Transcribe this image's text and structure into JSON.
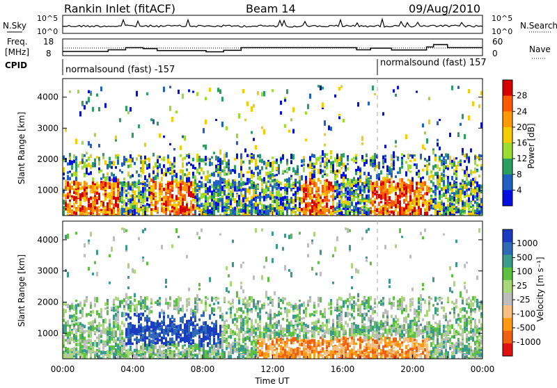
{
  "header": {
    "station": "Rankin Inlet (fitACF)",
    "beam": "Beam 14",
    "date": "09/Aug/2010"
  },
  "left_labels": {
    "nsky": "N.Sky",
    "freq": "Freq.",
    "mhz": "[MHz]",
    "cpid": "CPID"
  },
  "right_labels": {
    "nsearch": "N.Search",
    "nave": "Nave"
  },
  "cpid_segments": [
    {
      "label": "normalsound (fast) -157",
      "start_h": 0
    },
    {
      "label": "normalsound (fast) 157",
      "start_h": 18
    }
  ],
  "chart_data": [
    {
      "type": "line",
      "panel": "noise",
      "left_ticks": [
        "10^5",
        "10^0"
      ],
      "right_ticks": [
        "10^5",
        "10^0"
      ]
    },
    {
      "type": "line",
      "panel": "frequency",
      "left_ticks": [
        "18",
        "8"
      ],
      "right_ticks": [
        "60",
        "0"
      ],
      "freq_mhz_steps": [
        {
          "t": 0,
          "v": 10.5
        },
        {
          "t": 2.6,
          "v": 11.5
        },
        {
          "t": 3.6,
          "v": 12.8
        },
        {
          "t": 4.6,
          "v": 12.2
        },
        {
          "t": 5.4,
          "v": 11.0
        },
        {
          "t": 8.2,
          "v": 10.3
        },
        {
          "t": 9.2,
          "v": 11.2
        },
        {
          "t": 10.2,
          "v": 12.8
        },
        {
          "t": 16.8,
          "v": 11.5
        },
        {
          "t": 17.6,
          "v": 12.5
        },
        {
          "t": 18.8,
          "v": 11.4
        },
        {
          "t": 20.8,
          "v": 13.2
        },
        {
          "t": 21.2,
          "v": 14.6
        },
        {
          "t": 22.0,
          "v": 12.8
        },
        {
          "t": 24,
          "v": 12.8
        }
      ]
    },
    {
      "type": "heatmap",
      "panel": "power",
      "ylabel": "Slant Range [km]",
      "colorbar_label": "Power [dB]",
      "colorbar_ticks": [
        "28",
        "24",
        "20",
        "16",
        "12",
        "8",
        "4"
      ],
      "colors": [
        "#d40000",
        "#ff5a00",
        "#ff9a00",
        "#f4cc00",
        "#9adc30",
        "#2aa060",
        "#2060c0",
        "#0010e0"
      ],
      "y_ticks": [
        "4000",
        "3000",
        "2000",
        "1000"
      ]
    },
    {
      "type": "heatmap",
      "panel": "velocity",
      "ylabel": "Slant Range [km]",
      "xlabel": "Time UT",
      "colorbar_label": "Velocity [m s⁻¹]",
      "colorbar_ticks": [
        "1000",
        "500",
        "100",
        "25",
        "-25",
        "-100",
        "-500",
        "-1000"
      ],
      "colors": [
        "#1a3cc0",
        "#2e6ab6",
        "#3a9a8c",
        "#5cc040",
        "#a8d878",
        "#bdbdbd",
        "#f8c080",
        "#ff9a10",
        "#f06010",
        "#e01010"
      ],
      "y_ticks": [
        "4000",
        "3000",
        "2000",
        "1000"
      ],
      "x_ticks": [
        "00:00",
        "04:00",
        "08:00",
        "12:00",
        "16:00",
        "20:00",
        "00:00"
      ]
    }
  ]
}
